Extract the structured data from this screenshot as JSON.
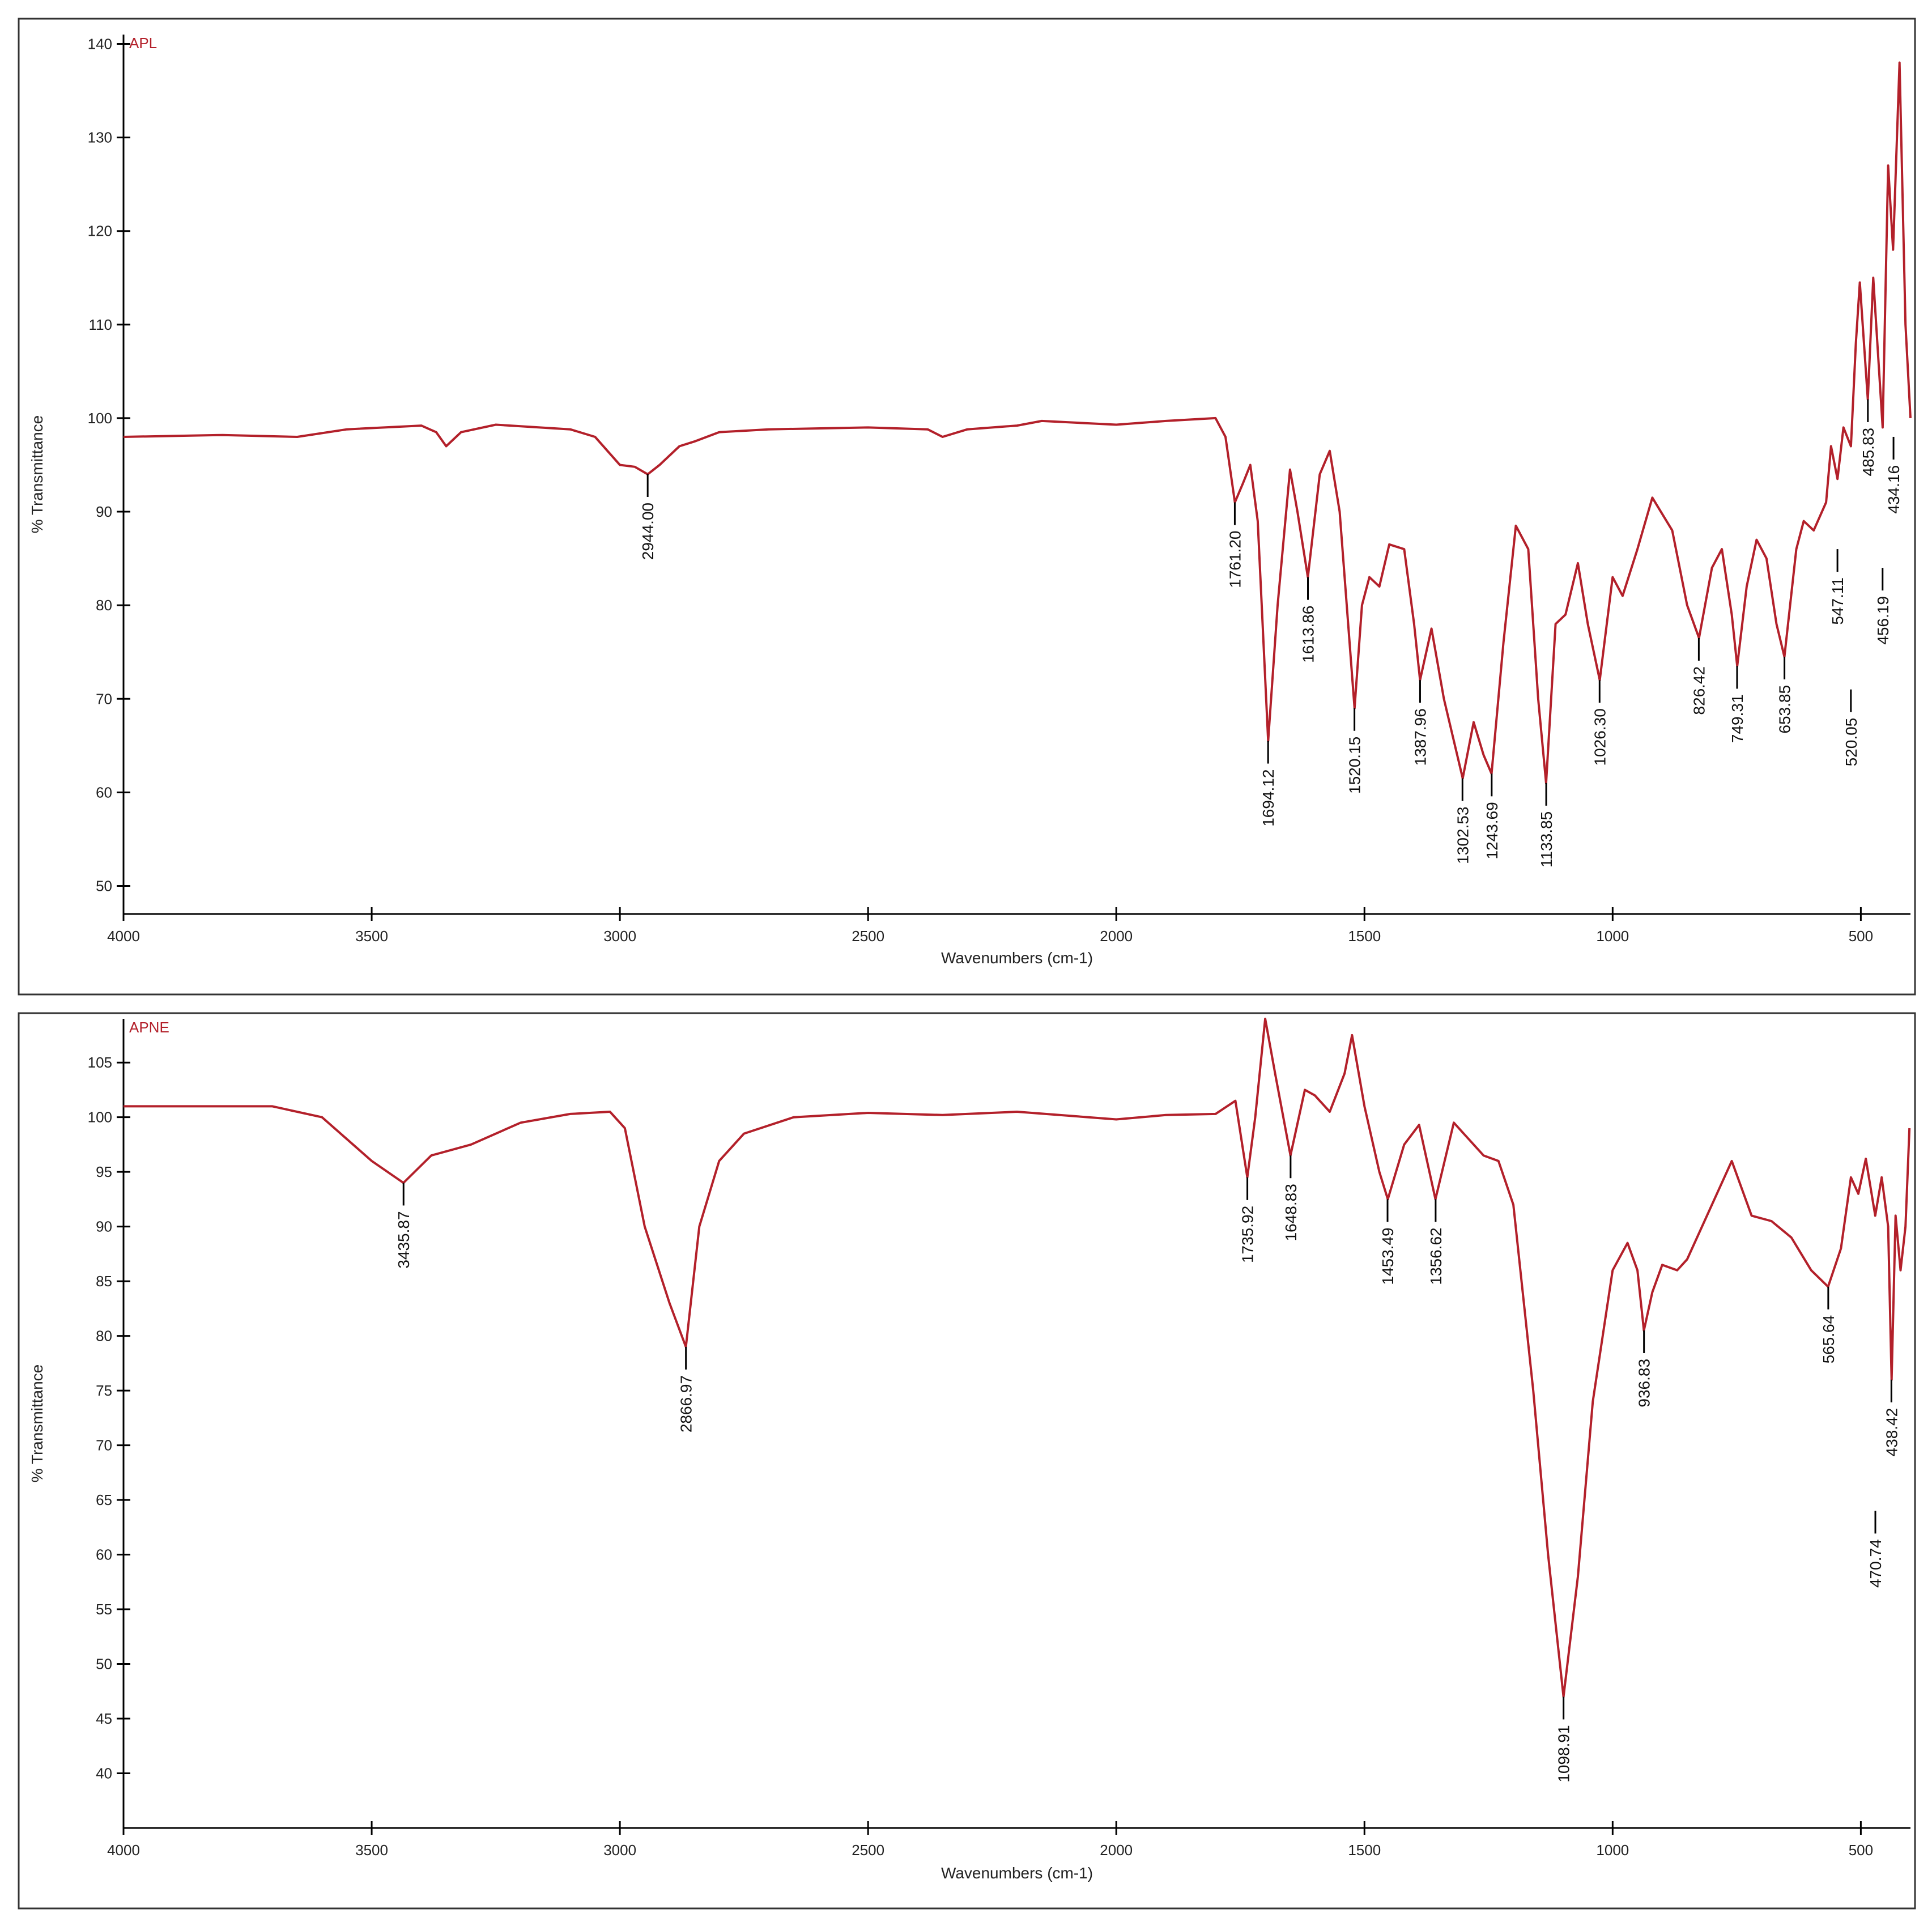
{
  "chart_data": [
    {
      "type": "line",
      "x_label": "Wavenumbers (cm-1)",
      "y_label": "% Transmittance",
      "xlim": [
        4000,
        400
      ],
      "ylim": [
        47,
        141
      ],
      "xticks": [
        4000,
        3500,
        3000,
        2500,
        2000,
        1500,
        1000,
        500
      ],
      "yticks": [
        50,
        60,
        70,
        80,
        90,
        100,
        110,
        120,
        130,
        140
      ],
      "x": [
        4000,
        3800,
        3650,
        3550,
        3400,
        3370,
        3350,
        3320,
        3250,
        3100,
        3050,
        3000,
        2970,
        2944,
        2920,
        2880,
        2850,
        2800,
        2700,
        2500,
        2380,
        2350,
        2300,
        2200,
        2150,
        2000,
        1900,
        1800,
        1780,
        1761,
        1745,
        1730,
        1715,
        1694,
        1675,
        1650,
        1635,
        1614,
        1590,
        1570,
        1550,
        1520,
        1505,
        1490,
        1470,
        1450,
        1420,
        1400,
        1388,
        1365,
        1340,
        1302,
        1280,
        1260,
        1244,
        1220,
        1195,
        1170,
        1150,
        1134,
        1115,
        1095,
        1070,
        1050,
        1026,
        1000,
        980,
        950,
        920,
        880,
        850,
        826,
        800,
        780,
        760,
        749,
        730,
        710,
        690,
        670,
        654,
        630,
        615,
        595,
        570,
        560,
        547,
        535,
        520,
        510,
        502,
        486,
        475,
        456,
        445,
        435,
        422,
        410,
        400
      ],
      "series": [
        {
          "name": "APL",
          "color": "#b3202a",
          "values": [
            98,
            98.2,
            98,
            98.8,
            99.2,
            98.5,
            97,
            98.5,
            99.3,
            98.8,
            98,
            95,
            94.8,
            94,
            95,
            97,
            97.5,
            98.5,
            98.8,
            99,
            98.8,
            98,
            98.8,
            99.2,
            99.7,
            99.3,
            99.7,
            100,
            98,
            91,
            93,
            95,
            89,
            65.5,
            80,
            94.5,
            90,
            83,
            94,
            96.5,
            90,
            69,
            80,
            83,
            82,
            86.5,
            86,
            78,
            72,
            77.5,
            70,
            61.5,
            67.5,
            64,
            62,
            76,
            88.5,
            86,
            70,
            61,
            78,
            79,
            84.5,
            78,
            72,
            83,
            81,
            86,
            91.5,
            88,
            80,
            76.5,
            84,
            86,
            79,
            73.5,
            82,
            87,
            85,
            78,
            74.5,
            86,
            89,
            88,
            91,
            97,
            93.5,
            99,
            97,
            108,
            114.5,
            102,
            115,
            99,
            127,
            118,
            138,
            110,
            100
          ]
        }
      ],
      "annotations": [
        {
          "x": 2944,
          "y": 94,
          "label": "2944.00"
        },
        {
          "x": 1761.2,
          "y": 91,
          "label": "1761.20"
        },
        {
          "x": 1694.12,
          "y": 65.5,
          "label": "1694.12"
        },
        {
          "x": 1613.86,
          "y": 83,
          "label": "1613.86"
        },
        {
          "x": 1520.15,
          "y": 69,
          "label": "1520.15"
        },
        {
          "x": 1387.96,
          "y": 72,
          "label": "1387.96"
        },
        {
          "x": 1302.53,
          "y": 61.5,
          "label": "1302.53"
        },
        {
          "x": 1243.69,
          "y": 62,
          "label": "1243.69"
        },
        {
          "x": 1133.85,
          "y": 61,
          "label": "1133.85"
        },
        {
          "x": 1026.3,
          "y": 72,
          "label": "1026.30"
        },
        {
          "x": 826.42,
          "y": 76.5,
          "label": "826.42"
        },
        {
          "x": 749.31,
          "y": 73.5,
          "label": "749.31"
        },
        {
          "x": 653.85,
          "y": 74.5,
          "label": "653.85"
        },
        {
          "x": 547.11,
          "y": 86,
          "label": "547.11"
        },
        {
          "x": 520.05,
          "y": 71,
          "label": "520.05"
        },
        {
          "x": 485.83,
          "y": 102,
          "label": "485.83"
        },
        {
          "x": 456.19,
          "y": 84,
          "label": "456.19"
        },
        {
          "x": 434.16,
          "y": 98,
          "label": "434.16"
        }
      ]
    },
    {
      "type": "line",
      "x_label": "Wavenumbers (cm-1)",
      "y_label": "% Transmittance",
      "xlim": [
        4000,
        400
      ],
      "ylim": [
        35,
        109
      ],
      "xticks": [
        4000,
        3500,
        3000,
        2500,
        2000,
        1500,
        1000,
        500
      ],
      "yticks": [
        40,
        45,
        50,
        55,
        60,
        65,
        70,
        75,
        80,
        85,
        90,
        95,
        100,
        105
      ],
      "x": [
        4000,
        3700,
        3600,
        3500,
        3436,
        3380,
        3300,
        3200,
        3100,
        3020,
        2990,
        2950,
        2900,
        2867,
        2840,
        2800,
        2750,
        2650,
        2500,
        2350,
        2200,
        2000,
        1900,
        1800,
        1760,
        1736,
        1720,
        1700,
        1680,
        1649,
        1620,
        1600,
        1570,
        1540,
        1525,
        1500,
        1470,
        1453,
        1420,
        1390,
        1357,
        1320,
        1290,
        1260,
        1230,
        1200,
        1160,
        1130,
        1099,
        1070,
        1040,
        1000,
        970,
        950,
        937,
        920,
        900,
        870,
        850,
        800,
        760,
        720,
        680,
        640,
        600,
        566,
        540,
        520,
        505,
        490,
        471,
        458,
        445,
        438,
        430,
        420,
        410,
        402
      ],
      "series": [
        {
          "name": "APNE",
          "color": "#b3202a",
          "values": [
            101,
            101,
            100,
            96,
            94,
            96.5,
            97.5,
            99.5,
            100.3,
            100.5,
            99,
            90,
            83,
            79,
            90,
            96,
            98.5,
            100,
            100.4,
            100.2,
            100.5,
            99.8,
            100.2,
            100.3,
            101.5,
            94.5,
            100,
            109,
            104,
            96.5,
            102.5,
            102,
            100.5,
            104,
            107.5,
            101,
            95,
            92.5,
            97.5,
            99.3,
            92.5,
            99.5,
            98,
            96.5,
            96,
            92,
            75,
            60,
            47,
            58,
            74,
            86,
            88.5,
            86,
            80.5,
            84,
            86.5,
            86,
            87,
            92,
            96,
            91,
            90.5,
            89,
            86,
            84.5,
            88,
            94.5,
            93,
            96.2,
            91,
            94.5,
            90,
            76,
            91,
            86,
            90,
            99
          ]
        }
      ],
      "annotations": [
        {
          "x": 3435.87,
          "y": 94,
          "label": "3435.87"
        },
        {
          "x": 2866.97,
          "y": 79,
          "label": "2866.97"
        },
        {
          "x": 1735.92,
          "y": 94.5,
          "label": "1735.92"
        },
        {
          "x": 1648.83,
          "y": 96.5,
          "label": "1648.83"
        },
        {
          "x": 1453.49,
          "y": 92.5,
          "label": "1453.49"
        },
        {
          "x": 1356.62,
          "y": 92.5,
          "label": "1356.62"
        },
        {
          "x": 1098.91,
          "y": 47,
          "label": "1098.91"
        },
        {
          "x": 936.83,
          "y": 80.5,
          "label": "936.83"
        },
        {
          "x": 565.64,
          "y": 84.5,
          "label": "565.64"
        },
        {
          "x": 470.74,
          "y": 64,
          "label": "470.74"
        },
        {
          "x": 438.42,
          "y": 76,
          "label": "438.42"
        }
      ]
    }
  ]
}
